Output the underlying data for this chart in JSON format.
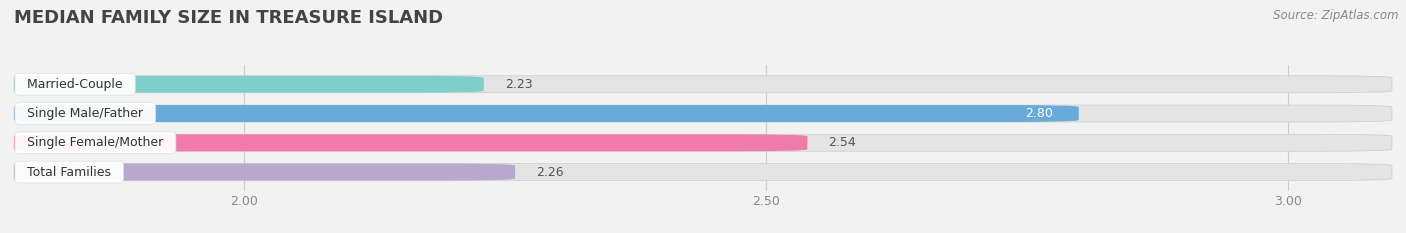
{
  "title": "MEDIAN FAMILY SIZE IN TREASURE ISLAND",
  "source": "Source: ZipAtlas.com",
  "categories": [
    "Married-Couple",
    "Single Male/Father",
    "Single Female/Mother",
    "Total Families"
  ],
  "values": [
    2.23,
    2.8,
    2.54,
    2.26
  ],
  "bar_colors": [
    "#7ececa",
    "#6aaada",
    "#f07aaa",
    "#b8a8cc"
  ],
  "xlim_data": [
    1.78,
    3.1
  ],
  "xlim_display": [
    1.78,
    3.1
  ],
  "xticks": [
    2.0,
    2.5,
    3.0
  ],
  "bar_height": 0.58,
  "background_color": "#f2f2f2",
  "bar_bg_color": "#e4e4e4",
  "label_bg_color": "#ffffff",
  "label_inside_color": "#ffffff",
  "label_outside_color": "#555555",
  "inside_label_val": 2.8,
  "value_fontsize": 9,
  "cat_fontsize": 9,
  "title_fontsize": 13,
  "source_fontsize": 8.5
}
